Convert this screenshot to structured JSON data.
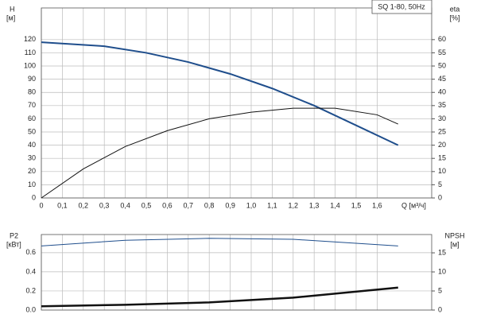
{
  "chart_data": [
    {
      "type": "line",
      "title": "SQ 1-80, 50Hz",
      "y_label": "H",
      "y_unit": "[м]",
      "y2_label": "eta",
      "y2_unit": "[%]",
      "x_label": "Q [м³/ч]",
      "xlim": [
        0,
        1.86
      ],
      "xticks": [
        0,
        {
          "value": 0.1,
          "label": "0,1"
        },
        {
          "value": 0.2,
          "label": "0,2"
        },
        {
          "value": 0.3,
          "label": "0,3"
        },
        {
          "value": 0.4,
          "label": "0,4"
        },
        {
          "value": 0.5,
          "label": "0,5"
        },
        {
          "value": 0.6,
          "label": "0,6"
        },
        {
          "value": 0.7,
          "label": "0,7"
        },
        {
          "value": 0.8,
          "label": "0,8"
        },
        {
          "value": 0.9,
          "label": "0,9"
        },
        {
          "value": 1.0,
          "label": "1,0"
        },
        {
          "value": 1.1,
          "label": "1,1"
        },
        {
          "value": 1.2,
          "label": "1,2"
        },
        {
          "value": 1.3,
          "label": "1,3"
        },
        {
          "value": 1.4,
          "label": "1,4"
        },
        {
          "value": 1.5,
          "label": "1,5"
        },
        {
          "value": 1.6,
          "label": "1,6"
        }
      ],
      "ylim": [
        0,
        144
      ],
      "yticks": [
        0,
        10,
        20,
        30,
        40,
        50,
        60,
        70,
        80,
        90,
        100,
        110,
        120
      ],
      "y2lim": [
        0,
        72
      ],
      "y2ticks": [
        0,
        5,
        10,
        15,
        20,
        25,
        30,
        35,
        40,
        45,
        50,
        55,
        60
      ],
      "grid": true,
      "series": [
        {
          "color": "#1f4e8c",
          "width": 2,
          "x": [
            0,
            0.3,
            0.5,
            0.7,
            0.9,
            1.1,
            1.3,
            1.5,
            1.7
          ],
          "values": [
            118,
            115,
            110,
            103,
            94,
            83,
            70,
            55,
            40
          ]
        },
        {
          "color": "#111111",
          "width": 1,
          "axis": "y2",
          "x": [
            0,
            0.2,
            0.4,
            0.6,
            0.8,
            1.0,
            1.2,
            1.4,
            1.6,
            1.7
          ],
          "values": [
            0,
            11,
            19.5,
            25.5,
            30,
            32.5,
            34,
            34,
            31.5,
            28
          ]
        }
      ]
    },
    {
      "type": "line",
      "y_label": "P2",
      "y_unit": "[кВт]",
      "y2_label": "NPSH",
      "y2_unit": "[м]",
      "xlim": [
        0,
        1.86
      ],
      "ylim": [
        0,
        0.79
      ],
      "yticks": [
        {
          "value": 0,
          "label": "0.0"
        },
        0.2,
        0.4,
        0.6
      ],
      "y2lim": [
        0,
        19.8
      ],
      "y2ticks": [
        0,
        5,
        10,
        15
      ],
      "grid": true,
      "series": [
        {
          "color": "#1f4e8c",
          "width": 1,
          "x": [
            0,
            0.4,
            0.8,
            1.2,
            1.7
          ],
          "values": [
            0.67,
            0.73,
            0.75,
            0.74,
            0.67
          ]
        },
        {
          "color": "#111111",
          "width": 2.5,
          "x": [
            0,
            0.4,
            0.8,
            1.2,
            1.7
          ],
          "values": [
            0.04,
            0.055,
            0.08,
            0.13,
            0.235
          ]
        }
      ]
    }
  ]
}
